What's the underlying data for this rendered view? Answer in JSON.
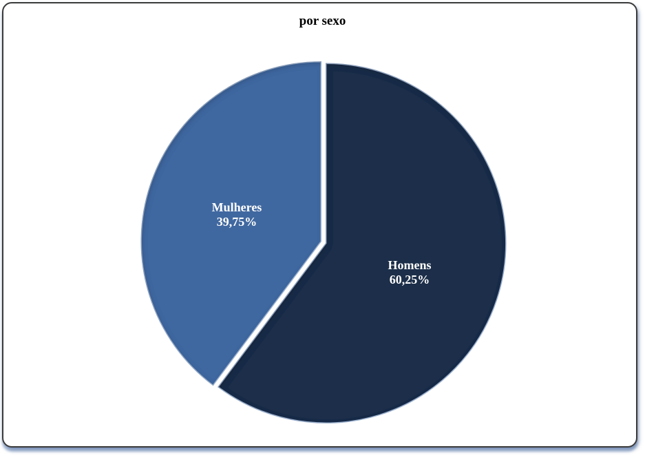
{
  "chart_data": {
    "type": "pie",
    "title": "por sexo",
    "slices": [
      {
        "name": "Homens",
        "value": 60.25,
        "label": "60,25%",
        "color": "#1f2f48"
      },
      {
        "name": "Mulheres",
        "value": 39.75,
        "label": "39,75%",
        "color": "#3f68a0"
      }
    ],
    "start": "12 o'clock",
    "direction": "clockwise"
  }
}
